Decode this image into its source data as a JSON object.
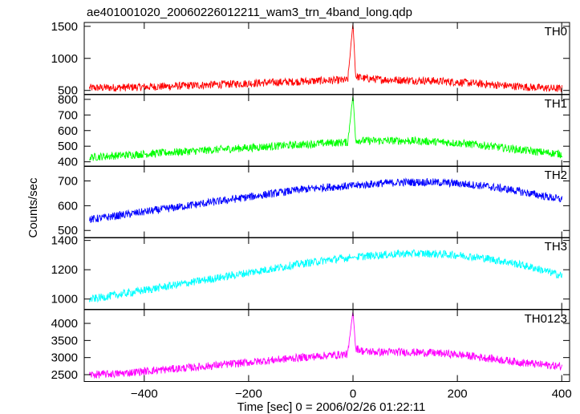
{
  "title": "ae401001020_20060226012211_wam3_trn_4band_long.qdp",
  "xlabel": "Time [sec] 0 = 2006/02/26 01:22:11",
  "ylabel": "Counts/sec",
  "chart_data": {
    "type": "line",
    "title": "ae401001020_20060226012211_wam3_trn_4band_long.qdp",
    "xlabel": "Time [sec] 0 = 2006/02/26 01:22:11",
    "ylabel": "Counts/sec",
    "xlim": [
      -515,
      415
    ],
    "xticks": [
      -400,
      -200,
      0,
      200,
      400
    ],
    "grid": false,
    "panels": [
      {
        "name": "TH0",
        "color": "#ff0000",
        "ylim": [
          440,
          1560
        ],
        "yticks": [
          500,
          1000,
          1500
        ],
        "x": [
          -500,
          -450,
          -400,
          -350,
          -300,
          -250,
          -200,
          -150,
          -100,
          -50,
          -10,
          0,
          5,
          20,
          50,
          100,
          150,
          200,
          250,
          300,
          350,
          400
        ],
        "y": [
          540,
          545,
          555,
          565,
          580,
          595,
          610,
          625,
          640,
          655,
          660,
          1560,
          720,
          690,
          670,
          660,
          650,
          630,
          600,
          570,
          545,
          525
        ]
      },
      {
        "name": "TH1",
        "color": "#00ff00",
        "ylim": [
          370,
          830
        ],
        "yticks": [
          400,
          500,
          600,
          700,
          800
        ],
        "x": [
          -500,
          -450,
          -400,
          -350,
          -300,
          -250,
          -200,
          -150,
          -100,
          -50,
          -10,
          0,
          5,
          20,
          50,
          100,
          150,
          200,
          250,
          300,
          350,
          400
        ],
        "y": [
          430,
          440,
          450,
          460,
          470,
          480,
          490,
          500,
          510,
          520,
          525,
          830,
          540,
          535,
          535,
          535,
          530,
          520,
          505,
          485,
          465,
          450
        ]
      },
      {
        "name": "TH2",
        "color": "#0000ff",
        "ylim": [
          470,
          760
        ],
        "yticks": [
          500,
          600,
          700
        ],
        "x": [
          -500,
          -450,
          -400,
          -350,
          -300,
          -250,
          -200,
          -150,
          -100,
          -50,
          0,
          50,
          100,
          150,
          200,
          250,
          300,
          350,
          400
        ],
        "y": [
          545,
          560,
          575,
          590,
          605,
          620,
          635,
          650,
          665,
          675,
          680,
          690,
          695,
          695,
          690,
          680,
          665,
          645,
          625
        ]
      },
      {
        "name": "TH3",
        "color": "#00ffff",
        "ylim": [
          930,
          1420
        ],
        "yticks": [
          1000,
          1200,
          1400
        ],
        "x": [
          -500,
          -450,
          -400,
          -350,
          -300,
          -250,
          -200,
          -150,
          -100,
          -50,
          0,
          50,
          100,
          150,
          200,
          250,
          300,
          350,
          400
        ],
        "y": [
          1000,
          1030,
          1060,
          1090,
          1120,
          1150,
          1180,
          1210,
          1240,
          1265,
          1285,
          1300,
          1310,
          1310,
          1300,
          1280,
          1250,
          1210,
          1160
        ]
      },
      {
        "name": "TH0123",
        "color": "#ff00ff",
        "ylim": [
          2300,
          4400
        ],
        "yticks": [
          2500,
          3000,
          3500,
          4000
        ],
        "x": [
          -500,
          -450,
          -400,
          -350,
          -300,
          -250,
          -200,
          -150,
          -100,
          -50,
          -10,
          0,
          5,
          20,
          50,
          100,
          150,
          200,
          250,
          300,
          350,
          400
        ],
        "y": [
          2500,
          2530,
          2600,
          2660,
          2720,
          2790,
          2860,
          2930,
          3000,
          3060,
          3100,
          4380,
          3280,
          3180,
          3160,
          3160,
          3140,
          3090,
          3000,
          2900,
          2810,
          2740
        ]
      }
    ]
  }
}
